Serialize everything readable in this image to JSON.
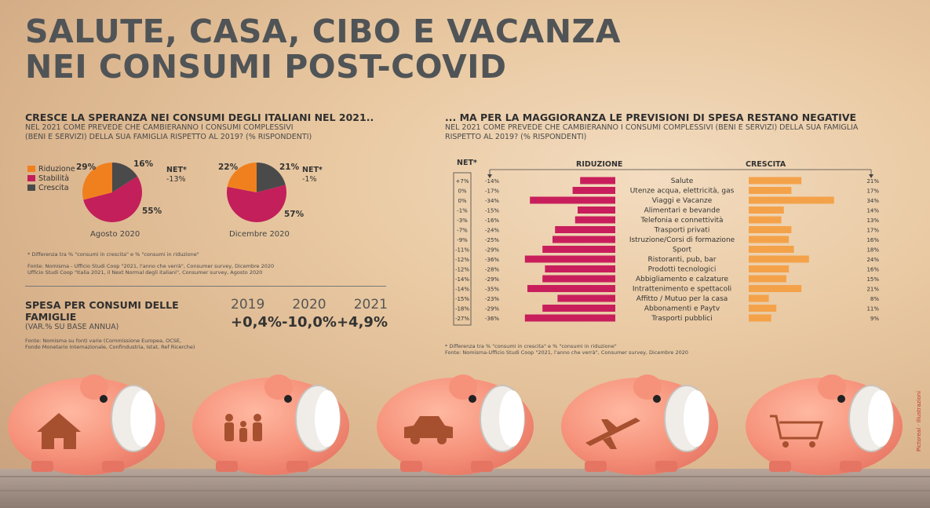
{
  "title_line1": "SALUTE, CASA, CIBO E VACANZA",
  "title_line2": "NEI CONSUMI POST-COVID",
  "left": {
    "heading": "CRESCE LA SPERANZA NEI CONSUMI DEGLI ITALIANI NEL 2021..",
    "subtitle_line1": "NEL 2021 COME PREVEDE CHE CAMBIERANNO I CONSUMI COMPLESSIVI",
    "subtitle_line2": "(BENI E SERVIZI) DELLA SUA FAMIGLIA RISPETTO AL 2019? (% RISPONDENTI)",
    "legend": [
      "Riduzione",
      "Stabilità",
      "Crescita"
    ],
    "net_label": "NET*",
    "footnote": "* Differenza tra % \"consumi in crescita\" e % \"consumi in riduzione\"",
    "source": "Fonte: Nomisma - Ufficio Studi Coop \"2021, l'anno che verrà\", Consumer survey, Dicembre 2020\n           Ufficio Studi Coop \"Italia 2021, il Next Normal degli italiani\", Consumer survey, Agosto 2020",
    "spesa_heading": "SPESA PER CONSUMI DELLE FAMIGLIE",
    "spesa_sub": "(VAR.% SU BASE ANNUA)",
    "spesa_source": "Fonte: Nomisma su fonti varie (Commissione Europea, OCSE,\n           Fondo Monetario Internazionale, Confindustria, Istat, Ref Ricerche)"
  },
  "right": {
    "heading": "... MA PER LA MAGGIORANZA LE PREVISIONI DI SPESA RESTANO NEGATIVE",
    "subtitle_line1": "NEL 2021 COME PREVEDE CHE CAMBIERANNO I CONSUMI COMPLESSIVI (BENI E SERVIZI) DELLA SUA FAMIGLIA",
    "subtitle_line2": "RISPETTO AL 2019? (% RISPONDENTI)",
    "col_net": "NET*",
    "col_riduzione": "RIDUZIONE",
    "col_crescita": "CRESCITA",
    "footnote": "* Differenza tra % \"consumi in crescita\" e % \"consumi in riduzione\"",
    "source": "Fonte: Nomisma-Ufficio Studi Coop \"2021, l'anno che verrà\", Consumer survey, Dicembre 2020"
  },
  "watermark": "Pictoreal · Illustrazioni",
  "colors": {
    "riduzione": "#f0801e",
    "stabilita": "#c21f5b",
    "crescita": "#4a4a4a",
    "bar_reduction": "#c81f5c",
    "bar_growth": "#f4a24a",
    "title": "#505456"
  },
  "piggy_icons": [
    "house-icon",
    "family-icon",
    "car-icon",
    "airplane-icon",
    "shopping-cart-icon"
  ],
  "chart_data": [
    {
      "type": "pie",
      "title": "Agosto 2020",
      "labels": [
        "Riduzione",
        "Stabilità",
        "Crescita"
      ],
      "label_texts": [
        "29%",
        "55%",
        "16%"
      ],
      "values": [
        29,
        55,
        16
      ],
      "net": "-13%"
    },
    {
      "type": "pie",
      "title": "Dicembre 2020",
      "labels": [
        "Riduzione",
        "Stabilità",
        "Crescita"
      ],
      "label_texts": [
        "22%",
        "57%",
        "21%"
      ],
      "values": [
        22,
        57,
        21
      ],
      "net": "-1%"
    },
    {
      "type": "table",
      "title": "SPESA PER CONSUMI DELLE FAMIGLIE",
      "years": [
        "2019",
        "2020",
        "2021"
      ],
      "values": [
        "+0,4%",
        "-10,0%",
        "+4,9%"
      ]
    },
    {
      "type": "bar",
      "categories": [
        "Salute",
        "Utenze acqua, elettricità, gas",
        "Viaggi e Vacanze",
        "Alimentari e bevande",
        "Telefonia e connettività",
        "Trasporti privati",
        "Istruzione/Corsi di formazione",
        "Sport",
        "Ristoranti, pub, bar",
        "Prodotti tecnologici",
        "Abbigliamento e calzature",
        "Intrattenimento e spettacoli",
        "Affitto / Mutuo per la casa",
        "Abbonamenti e Paytv",
        "Trasporti pubblici"
      ],
      "net": [
        "+7%",
        "0%",
        "0%",
        "-1%",
        "-3%",
        "-7%",
        "-9%",
        "-11%",
        "-12%",
        "-12%",
        "-14%",
        "-14%",
        "-15%",
        "-18%",
        "-27%"
      ],
      "series": [
        {
          "name": "RIDUZIONE",
          "values": [
            14,
            17,
            34,
            15,
            16,
            24,
            25,
            29,
            36,
            28,
            29,
            35,
            23,
            29,
            36
          ],
          "labels": [
            "-14%",
            "-17%",
            "-34%",
            "-15%",
            "-16%",
            "-24%",
            "-25%",
            "-29%",
            "-36%",
            "-28%",
            "-29%",
            "-35%",
            "-23%",
            "-29%",
            "-36%"
          ]
        },
        {
          "name": "CRESCITA",
          "values": [
            21,
            17,
            34,
            14,
            13,
            17,
            16,
            18,
            24,
            16,
            15,
            21,
            8,
            11,
            9
          ],
          "labels": [
            "21%",
            "17%",
            "34%",
            "14%",
            "13%",
            "17%",
            "16%",
            "18%",
            "24%",
            "16%",
            "15%",
            "21%",
            "8%",
            "11%",
            "9%"
          ]
        }
      ]
    }
  ]
}
